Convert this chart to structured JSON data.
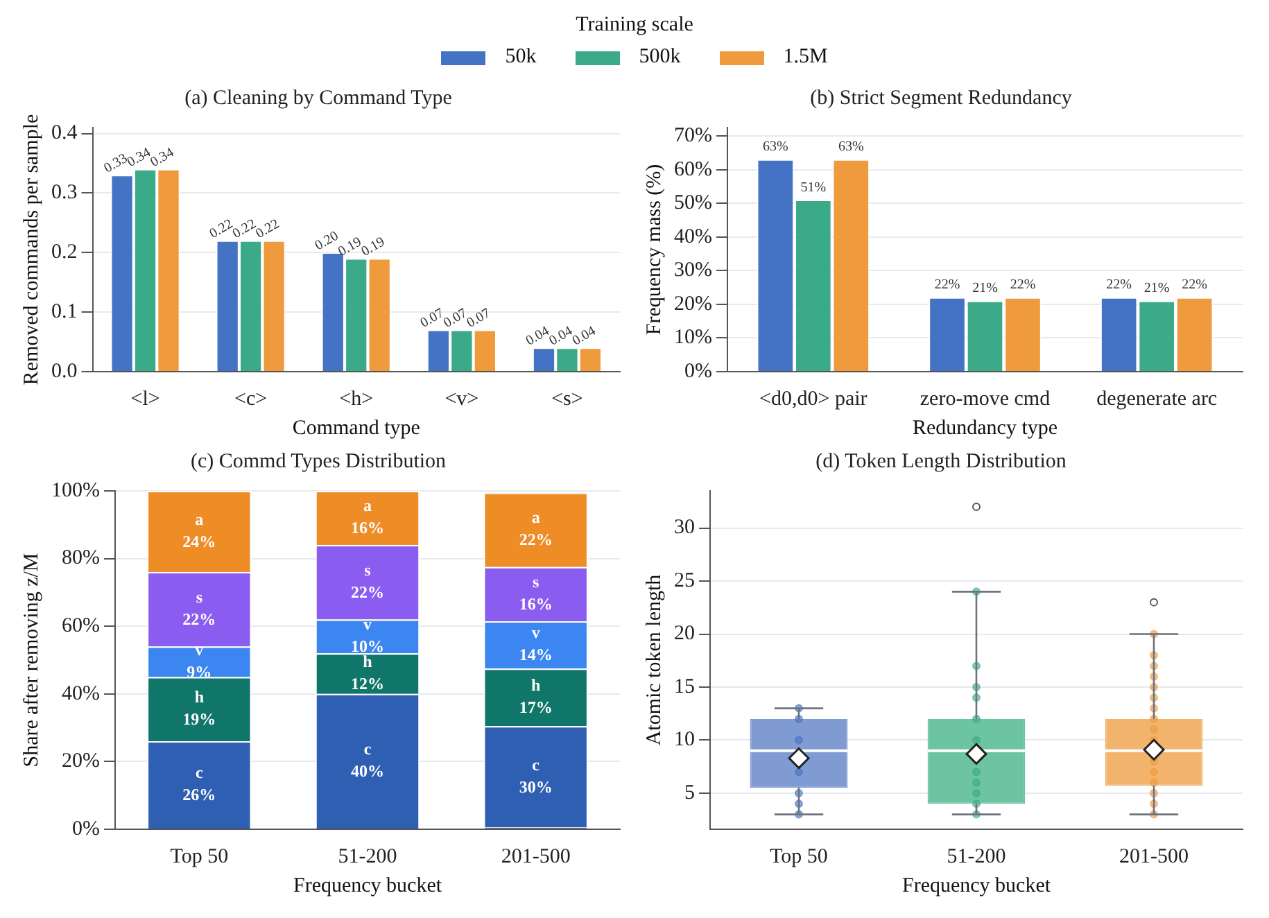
{
  "chart_data": [
    {
      "type": "bar",
      "title": "(a) Cleaning by Command Type",
      "xlabel": "Command type",
      "ylabel": "Removed commands per sample",
      "legend": "top",
      "legend_title": "Training scale",
      "categories": [
        "<l>",
        "<c>",
        "<h>",
        "<v>",
        "<s>"
      ],
      "series": [
        {
          "name": "50k",
          "color": "#4472c4",
          "values": [
            0.33,
            0.22,
            0.2,
            0.07,
            0.04
          ],
          "value_labels": [
            "0.33",
            "0.22",
            "0.20",
            "0.07",
            "0.04"
          ]
        },
        {
          "name": "500k",
          "color": "#3aaa88",
          "values": [
            0.34,
            0.22,
            0.19,
            0.07,
            0.04
          ],
          "value_labels": [
            "0.34",
            "0.22",
            "0.19",
            "0.07",
            "0.04"
          ]
        },
        {
          "name": "1.5M",
          "color": "#f09a3e",
          "values": [
            0.34,
            0.22,
            0.19,
            0.07,
            0.04
          ],
          "value_labels": [
            "0.34",
            "0.22",
            "0.19",
            "0.07",
            "0.04"
          ]
        }
      ],
      "ylim": [
        0,
        0.41
      ],
      "yticks": [
        {
          "value": 0,
          "label": "0.0"
        },
        0.1,
        0.2,
        0.3,
        0.4
      ],
      "grid": "y"
    },
    {
      "type": "bar",
      "title": "(b) Strict Segment Redundancy",
      "xlabel": "Redundancy type",
      "ylabel": "Frequency mass (%)",
      "categories": [
        "<d0,d0> pair",
        "zero-move cmd",
        "degenerate arc"
      ],
      "series": [
        {
          "color": "#4472c4",
          "values": [
            63,
            22,
            22
          ],
          "value_labels": [
            "63%",
            "22%",
            "22%"
          ]
        },
        {
          "color": "#3aaa88",
          "values": [
            51,
            21,
            21
          ],
          "value_labels": [
            "51%",
            "21%",
            "21%"
          ]
        },
        {
          "color": "#f09a3e",
          "values": [
            63,
            22,
            22
          ],
          "value_labels": [
            "63%",
            "22%",
            "22%"
          ]
        }
      ],
      "ylim": [
        0,
        72.5
      ],
      "yticks": [
        {
          "value": 0,
          "label": "0%"
        },
        {
          "value": 10,
          "label": "10%"
        },
        {
          "value": 20,
          "label": "20%"
        },
        {
          "value": 30,
          "label": "30%"
        },
        {
          "value": 40,
          "label": "40%"
        },
        {
          "value": 50,
          "label": "50%"
        },
        {
          "value": 60,
          "label": "60%"
        },
        {
          "value": 70,
          "label": "70%"
        }
      ],
      "grid": "y"
    },
    {
      "type": "bar",
      "stacked": true,
      "title": "(c) Commd Types Distribution",
      "xlabel": "Frequency bucket",
      "ylabel": "Share after removing z/M",
      "categories": [
        "Top 50",
        "51-200",
        "201-500"
      ],
      "series": [
        {
          "color": "#3a4a6b",
          "values": [
            null,
            null,
            0.5
          ]
        },
        {
          "name": "c",
          "color": "#2f5fb3",
          "values": [
            26,
            40,
            30
          ],
          "value_labels": [
            "26%",
            "40%",
            "30%"
          ]
        },
        {
          "name": "h",
          "color": "#11766a",
          "values": [
            19,
            12,
            17
          ],
          "value_labels": [
            "19%",
            "12%",
            "17%"
          ]
        },
        {
          "name": "v",
          "color": "#3b86f0",
          "values": [
            9,
            10,
            14
          ],
          "value_labels": [
            "9%",
            "10%",
            "14%"
          ]
        },
        {
          "name": "s",
          "color": "#8b5cf0",
          "values": [
            22,
            22,
            16
          ],
          "value_labels": [
            "22%",
            "22%",
            "16%"
          ]
        },
        {
          "name": "a",
          "color": "#ee8c26",
          "values": [
            24,
            16,
            22
          ],
          "value_labels": [
            "24%",
            "16%",
            "22%"
          ]
        }
      ],
      "ylim": [
        0,
        100
      ],
      "yticks": [
        {
          "value": 0,
          "label": "0%"
        },
        {
          "value": 20,
          "label": "20%"
        },
        {
          "value": 40,
          "label": "40%"
        },
        {
          "value": 60,
          "label": "60%"
        },
        {
          "value": 80,
          "label": "80%"
        },
        {
          "value": 100,
          "label": "100%"
        }
      ],
      "grid": "y"
    },
    {
      "type": "box",
      "title": "(d) Token Length Distribution",
      "xlabel": "Frequency bucket",
      "ylabel": "Atomic token length",
      "categories": [
        "Top 50",
        "51-200",
        "201-500"
      ],
      "colors": [
        "#7f9bd2",
        "#6cc4a2",
        "#f2b36d"
      ],
      "boxes": [
        {
          "low": 3,
          "q1": 5.5,
          "median": 9,
          "q3": 12,
          "high": 13,
          "mean": 8.3
        },
        {
          "low": 3,
          "q1": 4,
          "median": 9,
          "q3": 12,
          "high": 24,
          "mean": 8.7,
          "outliers": [
            32
          ]
        },
        {
          "low": 3,
          "q1": 5.7,
          "median": 9,
          "q3": 12,
          "high": 20,
          "mean": 9.1,
          "outliers": [
            23
          ]
        }
      ],
      "series": [
        {
          "type": "scatter",
          "color": "#4472c4",
          "x": [
            "Top 50",
            "Top 50",
            "Top 50",
            "Top 50",
            "Top 50",
            "Top 50",
            "Top 50"
          ],
          "values": [
            13,
            12,
            10,
            7,
            5,
            4,
            3
          ]
        },
        {
          "type": "scatter",
          "color": "#3aaa88",
          "x": [
            "51-200",
            "51-200",
            "51-200",
            "51-200",
            "51-200",
            "51-200",
            "51-200",
            "51-200",
            "51-200",
            "51-200",
            "51-200"
          ],
          "values": [
            24,
            17,
            15,
            14,
            12,
            10,
            7,
            6,
            5,
            4,
            3
          ]
        },
        {
          "type": "scatter",
          "color": "#f09a3e",
          "x": [
            "201-500",
            "201-500",
            "201-500",
            "201-500",
            "201-500",
            "201-500",
            "201-500",
            "201-500",
            "201-500",
            "201-500",
            "201-500",
            "201-500",
            "201-500",
            "201-500",
            "201-500",
            "201-500"
          ],
          "values": [
            20,
            18,
            17,
            16,
            15,
            14,
            13,
            12,
            11,
            10,
            8,
            7,
            6,
            5,
            4,
            3
          ]
        }
      ],
      "ylim": [
        1.6,
        33.5
      ],
      "yticks": [
        5,
        10,
        15,
        20,
        25,
        30
      ],
      "grid": "y"
    }
  ]
}
